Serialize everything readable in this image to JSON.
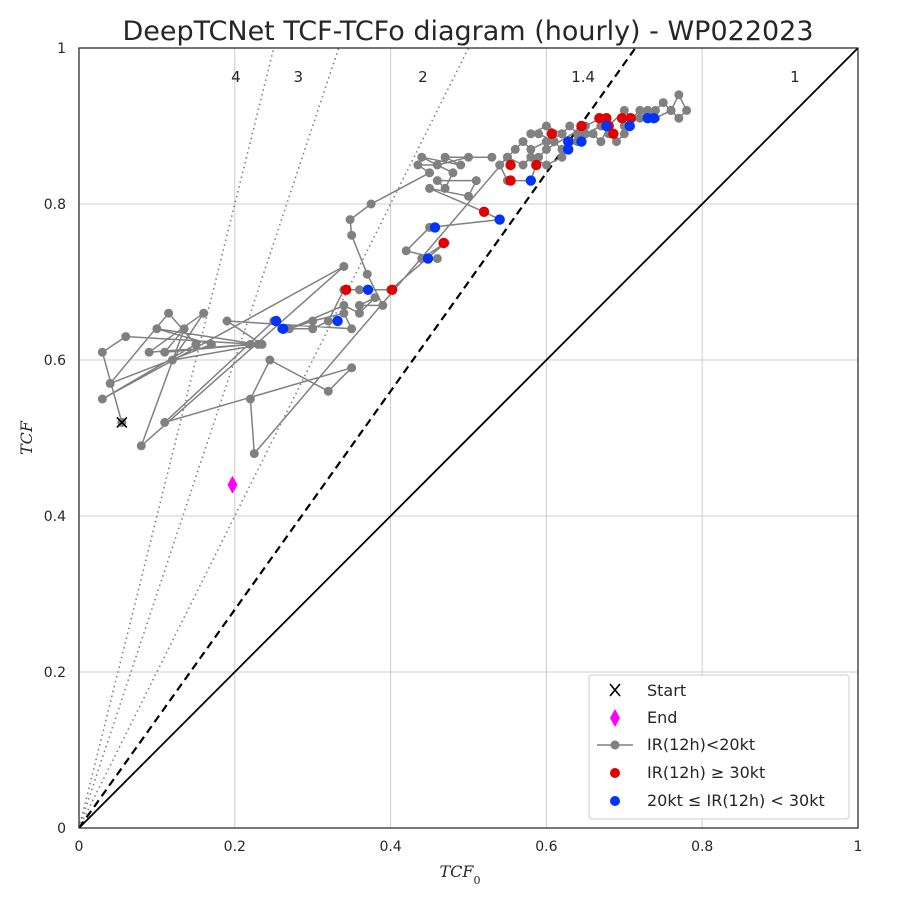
{
  "chart_data": {
    "type": "scatter",
    "title": "DeepTCNet TCF-TCFo diagram (hourly) - WP022023",
    "xlabel": "TCF",
    "xlabel_sub": "0",
    "ylabel": "TCF",
    "xlim": [
      0,
      1
    ],
    "ylim": [
      0,
      1
    ],
    "xticks": [
      "0",
      "0.2",
      "0.4",
      "0.6",
      "0.8",
      "1"
    ],
    "yticks": [
      "0",
      "0.2",
      "0.4",
      "0.6",
      "0.8",
      "1"
    ],
    "grid": true,
    "legend_position": "bottom-right",
    "colors": {
      "track": "#808080",
      "start": "#000000",
      "end": "#ff00ff",
      "ir_high": "#e00000",
      "ir_mid": "#0033ff",
      "ref": "#000000",
      "ratio": "#808080"
    },
    "ratio_lines": [
      {
        "label": "4",
        "slope": 4
      },
      {
        "label": "3",
        "slope": 3
      },
      {
        "label": "2",
        "slope": 2
      },
      {
        "label": "1.4",
        "slope": 1.4
      },
      {
        "label": "1",
        "slope": 1
      }
    ],
    "series": [
      {
        "name": "Start",
        "marker": "x",
        "points": [
          [
            0.055,
            0.52
          ]
        ]
      },
      {
        "name": "End",
        "marker": "diamond",
        "points": [
          [
            0.197,
            0.44
          ]
        ]
      },
      {
        "name": "IR(12h)<20kt",
        "marker": "line-dot",
        "points": [
          [
            0.055,
            0.52
          ],
          [
            0.03,
            0.61
          ],
          [
            0.06,
            0.63
          ],
          [
            0.23,
            0.62
          ],
          [
            0.1,
            0.64
          ],
          [
            0.17,
            0.62
          ],
          [
            0.04,
            0.57
          ],
          [
            0.115,
            0.66
          ],
          [
            0.15,
            0.62
          ],
          [
            0.03,
            0.55
          ],
          [
            0.34,
            0.72
          ],
          [
            0.08,
            0.49
          ],
          [
            0.135,
            0.64
          ],
          [
            0.11,
            0.61
          ],
          [
            0.22,
            0.62
          ],
          [
            0.09,
            0.61
          ],
          [
            0.16,
            0.66
          ],
          [
            0.12,
            0.6
          ],
          [
            0.235,
            0.62
          ],
          [
            0.19,
            0.65
          ],
          [
            0.35,
            0.64
          ],
          [
            0.34,
            0.66
          ],
          [
            0.3,
            0.65
          ],
          [
            0.27,
            0.64
          ],
          [
            0.34,
            0.67
          ],
          [
            0.36,
            0.66
          ],
          [
            0.38,
            0.68
          ],
          [
            0.36,
            0.67
          ],
          [
            0.39,
            0.67
          ],
          [
            0.37,
            0.71
          ],
          [
            0.35,
            0.76
          ],
          [
            0.348,
            0.78
          ],
          [
            0.375,
            0.8
          ],
          [
            0.45,
            0.84
          ],
          [
            0.435,
            0.85
          ],
          [
            0.46,
            0.85
          ],
          [
            0.5,
            0.86
          ],
          [
            0.53,
            0.86
          ],
          [
            0.47,
            0.86
          ],
          [
            0.49,
            0.85
          ],
          [
            0.44,
            0.86
          ],
          [
            0.48,
            0.84
          ],
          [
            0.47,
            0.82
          ],
          [
            0.46,
            0.83
          ],
          [
            0.51,
            0.83
          ],
          [
            0.5,
            0.81
          ],
          [
            0.45,
            0.82
          ],
          [
            0.52,
            0.79
          ],
          [
            0.54,
            0.78
          ],
          [
            0.45,
            0.77
          ],
          [
            0.42,
            0.74
          ],
          [
            0.46,
            0.73
          ],
          [
            0.44,
            0.73
          ],
          [
            0.47,
            0.75
          ],
          [
            0.4,
            0.69
          ],
          [
            0.36,
            0.69
          ],
          [
            0.34,
            0.69
          ],
          [
            0.32,
            0.65
          ],
          [
            0.3,
            0.64
          ],
          [
            0.26,
            0.64
          ],
          [
            0.25,
            0.65
          ],
          [
            0.11,
            0.52
          ],
          [
            0.35,
            0.59
          ],
          [
            0.32,
            0.56
          ],
          [
            0.245,
            0.6
          ],
          [
            0.22,
            0.55
          ],
          [
            0.225,
            0.48
          ],
          [
            0.55,
            0.86
          ],
          [
            0.56,
            0.87
          ],
          [
            0.57,
            0.88
          ],
          [
            0.58,
            0.87
          ],
          [
            0.6,
            0.88
          ],
          [
            0.62,
            0.89
          ],
          [
            0.63,
            0.9
          ],
          [
            0.64,
            0.89
          ],
          [
            0.62,
            0.86
          ],
          [
            0.6,
            0.85
          ],
          [
            0.58,
            0.86
          ],
          [
            0.57,
            0.85
          ],
          [
            0.55,
            0.86
          ],
          [
            0.54,
            0.85
          ],
          [
            0.55,
            0.83
          ],
          [
            0.58,
            0.83
          ],
          [
            0.59,
            0.86
          ],
          [
            0.6,
            0.87
          ],
          [
            0.65,
            0.9
          ],
          [
            0.67,
            0.91
          ],
          [
            0.68,
            0.89
          ],
          [
            0.69,
            0.88
          ],
          [
            0.7,
            0.89
          ],
          [
            0.7,
            0.9
          ],
          [
            0.71,
            0.91
          ],
          [
            0.72,
            0.92
          ],
          [
            0.73,
            0.91
          ],
          [
            0.74,
            0.92
          ],
          [
            0.75,
            0.93
          ],
          [
            0.76,
            0.92
          ],
          [
            0.77,
            0.94
          ],
          [
            0.78,
            0.92
          ],
          [
            0.77,
            0.91
          ],
          [
            0.76,
            0.92
          ],
          [
            0.74,
            0.91
          ],
          [
            0.73,
            0.92
          ],
          [
            0.72,
            0.91
          ],
          [
            0.71,
            0.91
          ],
          [
            0.7,
            0.92
          ],
          [
            0.68,
            0.9
          ],
          [
            0.67,
            0.88
          ],
          [
            0.66,
            0.89
          ],
          [
            0.64,
            0.88
          ],
          [
            0.62,
            0.87
          ],
          [
            0.61,
            0.88
          ],
          [
            0.59,
            0.89
          ],
          [
            0.58,
            0.89
          ],
          [
            0.6,
            0.9
          ],
          [
            0.62,
            0.89
          ],
          [
            0.63,
            0.88
          ],
          [
            0.65,
            0.89
          ],
          [
            0.67,
            0.9
          ]
        ]
      },
      {
        "name": "IR(12h) ≥ 30kt",
        "marker": "dot",
        "points": [
          [
            0.343,
            0.69
          ],
          [
            0.402,
            0.69
          ],
          [
            0.468,
            0.75
          ],
          [
            0.52,
            0.79
          ],
          [
            0.554,
            0.85
          ],
          [
            0.554,
            0.83
          ],
          [
            0.587,
            0.85
          ],
          [
            0.607,
            0.89
          ],
          [
            0.645,
            0.9
          ],
          [
            0.668,
            0.91
          ],
          [
            0.677,
            0.91
          ],
          [
            0.68,
            0.9
          ],
          [
            0.686,
            0.89
          ],
          [
            0.697,
            0.91
          ],
          [
            0.708,
            0.91
          ]
        ]
      },
      {
        "name": "20kt ≤ IR(12h) < 30kt",
        "marker": "dot",
        "points": [
          [
            0.253,
            0.65
          ],
          [
            0.262,
            0.64
          ],
          [
            0.332,
            0.65
          ],
          [
            0.371,
            0.69
          ],
          [
            0.448,
            0.73
          ],
          [
            0.457,
            0.77
          ],
          [
            0.54,
            0.78
          ],
          [
            0.58,
            0.83
          ],
          [
            0.628,
            0.87
          ],
          [
            0.628,
            0.88
          ],
          [
            0.645,
            0.88
          ],
          [
            0.677,
            0.9
          ],
          [
            0.707,
            0.9
          ],
          [
            0.73,
            0.91
          ],
          [
            0.738,
            0.91
          ]
        ]
      }
    ]
  },
  "legend": {
    "start_label": "Start",
    "end_label": "End",
    "ir_low_label": "IR(12h)<20kt",
    "ir_high_label": "IR(12h) ≥ 30kt",
    "ir_mid_label": "20kt ≤ IR(12h) < 30kt"
  }
}
